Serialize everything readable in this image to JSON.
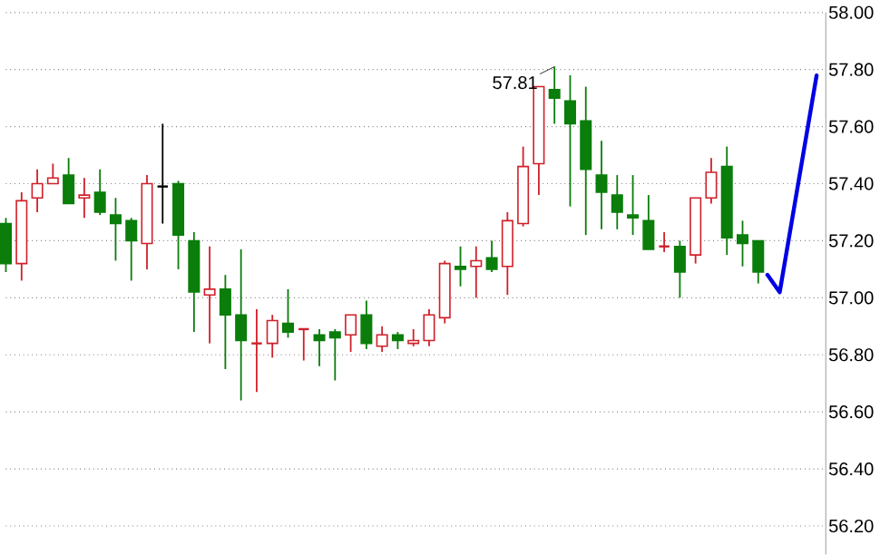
{
  "chart_data": {
    "type": "candlestick",
    "categories": [
      null,
      null,
      null,
      null,
      null,
      null,
      null,
      null,
      null,
      null,
      null,
      null,
      null,
      null,
      null,
      null,
      null,
      null,
      null,
      null,
      null,
      null,
      null,
      null,
      null,
      null,
      null,
      null,
      null,
      null,
      null,
      null,
      null,
      null,
      null,
      null,
      null,
      null,
      null,
      null,
      null,
      null,
      null,
      null,
      null,
      null,
      null,
      null,
      null
    ],
    "ohlc": [
      [
        57.26,
        57.28,
        57.09,
        57.12
      ],
      [
        57.12,
        57.37,
        57.06,
        57.34
      ],
      [
        57.35,
        57.45,
        57.3,
        57.4
      ],
      [
        57.4,
        57.47,
        57.4,
        57.42
      ],
      [
        57.43,
        57.49,
        57.33,
        57.33
      ],
      [
        57.35,
        57.42,
        57.28,
        57.36
      ],
      [
        57.37,
        57.45,
        57.29,
        57.3
      ],
      [
        57.29,
        57.35,
        57.13,
        57.26
      ],
      [
        57.27,
        57.28,
        57.06,
        57.2
      ],
      [
        57.19,
        57.43,
        57.1,
        57.4
      ],
      [
        57.39,
        57.61,
        57.26,
        57.39
      ],
      [
        57.4,
        57.41,
        57.1,
        57.22
      ],
      [
        57.2,
        57.23,
        56.88,
        57.02
      ],
      [
        57.01,
        57.18,
        56.84,
        57.03
      ],
      [
        57.03,
        57.08,
        56.75,
        56.94
      ],
      [
        56.94,
        57.17,
        56.64,
        56.85
      ],
      [
        56.84,
        56.96,
        56.67,
        56.84
      ],
      [
        56.84,
        56.94,
        56.79,
        56.92
      ],
      [
        56.91,
        57.03,
        56.86,
        56.88
      ],
      [
        56.89,
        56.89,
        56.78,
        56.89
      ],
      [
        56.87,
        56.89,
        56.76,
        56.85
      ],
      [
        56.88,
        56.89,
        56.71,
        56.86
      ],
      [
        56.87,
        56.94,
        56.81,
        56.94
      ],
      [
        56.94,
        56.99,
        56.82,
        56.84
      ],
      [
        56.83,
        56.9,
        56.81,
        56.87
      ],
      [
        56.87,
        56.88,
        56.82,
        56.85
      ],
      [
        56.84,
        56.89,
        56.83,
        56.85
      ],
      [
        56.85,
        56.96,
        56.83,
        56.94
      ],
      [
        56.93,
        57.13,
        56.91,
        57.12
      ],
      [
        57.11,
        57.18,
        57.04,
        57.1
      ],
      [
        57.11,
        57.18,
        57.0,
        57.13
      ],
      [
        57.14,
        57.2,
        57.09,
        57.1
      ],
      [
        57.11,
        57.3,
        57.01,
        57.27
      ],
      [
        57.26,
        57.53,
        57.25,
        57.46
      ],
      [
        57.47,
        57.74,
        57.36,
        57.74
      ],
      [
        57.73,
        57.81,
        57.61,
        57.7
      ],
      [
        57.69,
        57.78,
        57.32,
        57.61
      ],
      [
        57.62,
        57.74,
        57.22,
        57.45
      ],
      [
        57.43,
        57.55,
        57.24,
        57.37
      ],
      [
        57.36,
        57.43,
        57.24,
        57.3
      ],
      [
        57.29,
        57.43,
        57.22,
        57.28
      ],
      [
        57.27,
        57.36,
        57.17,
        57.17
      ],
      [
        57.18,
        57.23,
        57.16,
        57.18
      ],
      [
        57.18,
        57.2,
        57.0,
        57.09
      ],
      [
        57.15,
        57.35,
        57.12,
        57.35
      ],
      [
        57.35,
        57.49,
        57.33,
        57.44
      ],
      [
        57.46,
        57.53,
        57.15,
        57.21
      ],
      [
        57.22,
        57.27,
        57.11,
        57.19
      ],
      [
        57.2,
        57.2,
        57.05,
        57.09
      ]
    ],
    "colors": [
      "#0a7d0a",
      "#d0202a",
      "#d0202a",
      "#d0202a",
      "#0a7d0a",
      "#d0202a",
      "#0a7d0a",
      "#0a7d0a",
      "#0a7d0a",
      "#d0202a",
      "#000000",
      "#0a7d0a",
      "#0a7d0a",
      "#d0202a",
      "#0a7d0a",
      "#0a7d0a",
      "#d0202a",
      "#d0202a",
      "#0a7d0a",
      "#d0202a",
      "#0a7d0a",
      "#0a7d0a",
      "#d0202a",
      "#0a7d0a",
      "#d0202a",
      "#0a7d0a",
      "#d0202a",
      "#d0202a",
      "#d0202a",
      "#0a7d0a",
      "#d0202a",
      "#0a7d0a",
      "#d0202a",
      "#d0202a",
      "#d0202a",
      "#0a7d0a",
      "#0a7d0a",
      "#0a7d0a",
      "#0a7d0a",
      "#0a7d0a",
      "#0a7d0a",
      "#0a7d0a",
      "#d0202a",
      "#0a7d0a",
      "#d0202a",
      "#d0202a",
      "#0a7d0a",
      "#0a7d0a",
      "#0a7d0a"
    ],
    "ylim": [
      56.1,
      58.0
    ],
    "yticks": [
      {
        "value": 56.2,
        "label": "56.20"
      },
      {
        "value": 56.4,
        "label": "56.40"
      },
      {
        "value": 56.6,
        "label": "56.60"
      },
      {
        "value": 56.8,
        "label": "56.80"
      },
      {
        "value": 57.0,
        "label": "57.00"
      },
      {
        "value": 57.2,
        "label": "57.20"
      },
      {
        "value": 57.4,
        "label": "57.40"
      },
      {
        "value": 57.6,
        "label": "57.60"
      },
      {
        "value": 57.8,
        "label": "57.80"
      },
      {
        "value": 58.0,
        "label": "58.00"
      }
    ],
    "grid": "y",
    "tick_labels": "y",
    "annotations": [
      "57.81"
    ]
  }
}
